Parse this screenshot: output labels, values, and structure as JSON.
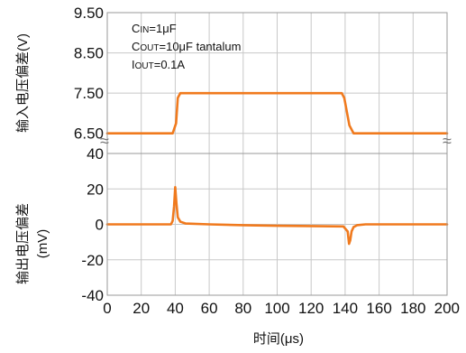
{
  "chart_data": [
    {
      "type": "line",
      "panel": "input",
      "ylabel": "输入电压偏差(V)",
      "ylim": [
        6.0,
        9.5
      ],
      "yticks": [
        "9.50",
        "8.50",
        "7.50",
        "6.50"
      ],
      "ytick_values": [
        9.5,
        8.5,
        7.5,
        6.5
      ],
      "annotations": [
        {
          "main": "C",
          "sub": "IN",
          "rest": "=1μF"
        },
        {
          "main": "C",
          "sub": "OUT",
          "rest": "=10μF tantalum"
        },
        {
          "main": "I",
          "sub": "OUT",
          "rest": "=0.1A"
        }
      ],
      "series": [
        {
          "color": "#f07a1e",
          "x": [
            0,
            38.5,
            40.5,
            41.5,
            43,
            138,
            139.5,
            142.5,
            145,
            200
          ],
          "y": [
            6.5,
            6.5,
            6.75,
            7.38,
            7.5,
            7.5,
            7.38,
            6.7,
            6.5,
            6.5
          ]
        }
      ],
      "break_mark": "≈",
      "grid": true
    },
    {
      "type": "line",
      "panel": "output",
      "ylabel": [
        "输出电压偏差",
        "(mV)"
      ],
      "xlabel": "时间(μs)",
      "xlim": [
        0,
        200
      ],
      "ylim": [
        -40,
        40
      ],
      "xticks": [
        "0",
        "20",
        "40",
        "60",
        "80",
        "100",
        "120",
        "140",
        "160",
        "180",
        "200"
      ],
      "yticks": [
        "40",
        "20",
        "0",
        "-20",
        "-40"
      ],
      "ytick_values": [
        40,
        20,
        0,
        -20,
        -40
      ],
      "series": [
        {
          "color": "#f07a1e",
          "x": [
            0,
            37.5,
            38.5,
            39.3,
            40,
            40.7,
            41.5,
            43,
            46,
            60,
            80,
            100,
            120,
            139,
            141.5,
            142.3,
            143,
            143.8,
            145,
            147,
            152,
            160,
            200
          ],
          "y": [
            0,
            0,
            2,
            10,
            21,
            12,
            4,
            1.5,
            0.5,
            0,
            -0.5,
            -0.8,
            -1,
            -1.2,
            -4,
            -11,
            -9,
            -4,
            -1.5,
            -0.5,
            0,
            0,
            0
          ]
        }
      ],
      "grid": true
    }
  ]
}
